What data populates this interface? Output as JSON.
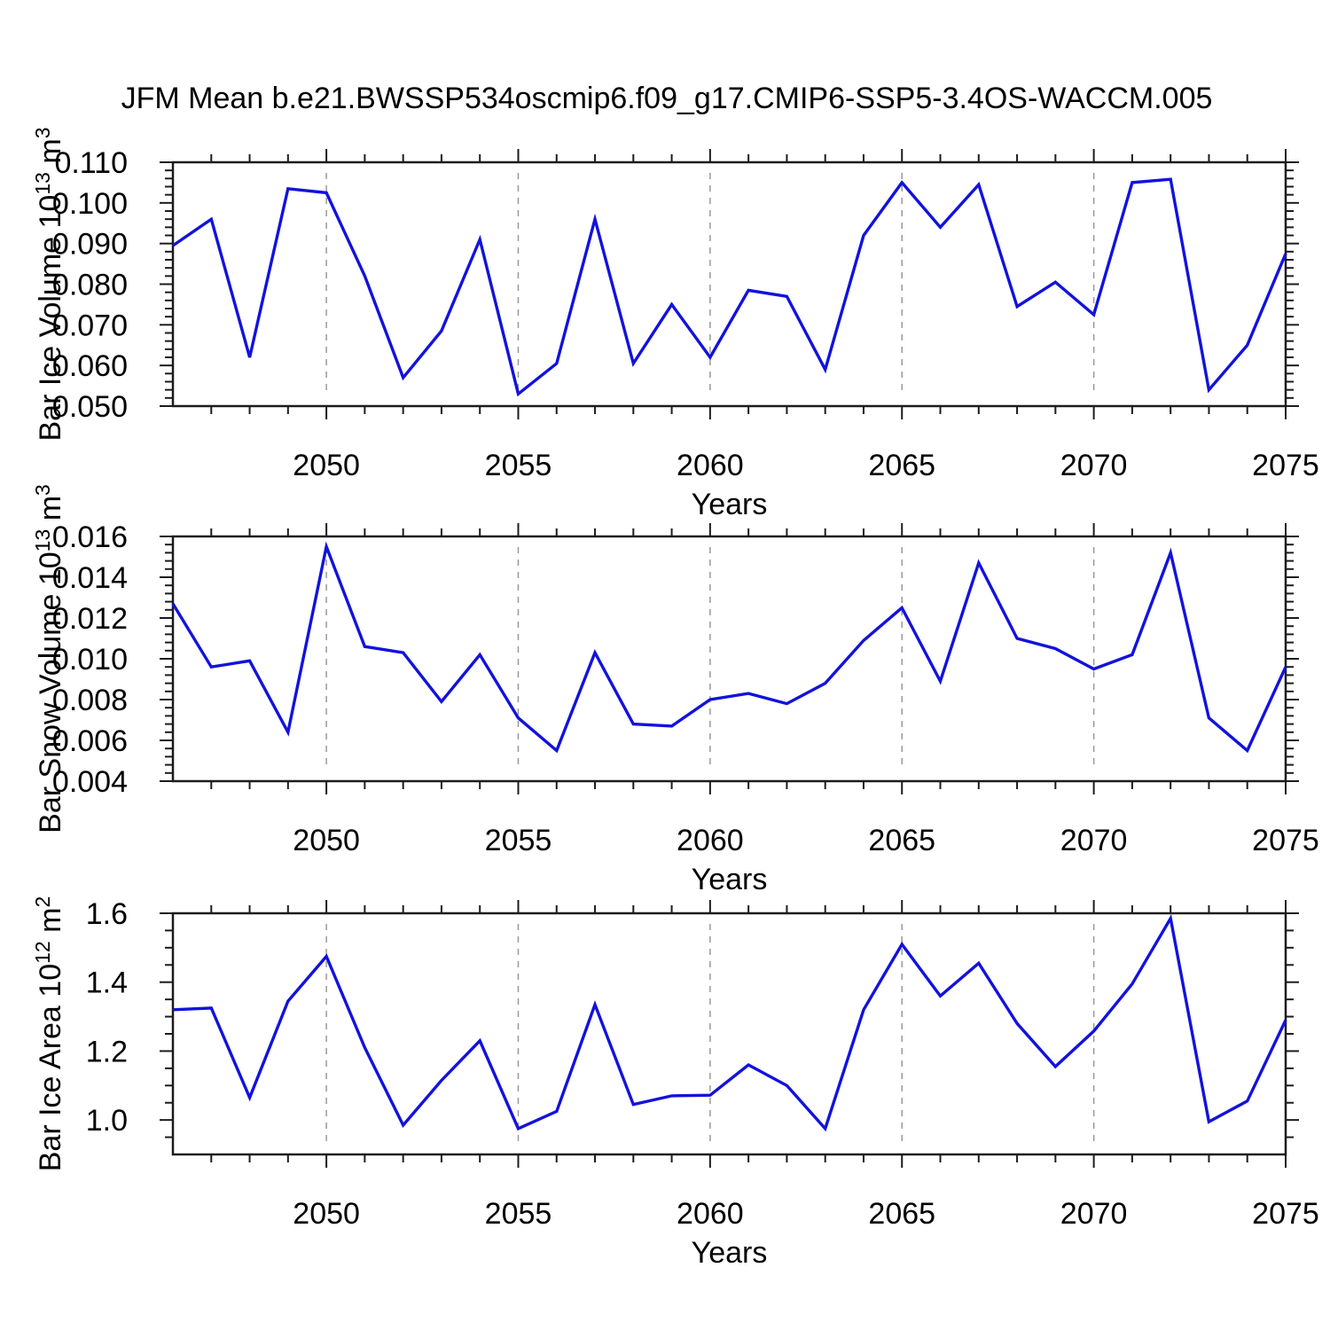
{
  "title": "JFM Mean b.e21.BWSSP534oscmip6.f09_g17.CMIP6-SSP5-3.4OS-WACCM.005",
  "colors": {
    "line": "#1212dd",
    "grid": "#999999",
    "frame": "#1c1c1c",
    "text": "#000000",
    "background": "#ffffff"
  },
  "x_axis": {
    "label": "Years",
    "min": 2046,
    "max": 2075,
    "major_ticks": [
      2050,
      2055,
      2060,
      2065,
      2070,
      2075
    ],
    "tick_labels": [
      "2050",
      "2055",
      "2060",
      "2065",
      "2070",
      "2075"
    ],
    "minor_step": 1,
    "grid_years": [
      2050,
      2055,
      2060,
      2065,
      2070
    ],
    "grid_style": "dashed"
  },
  "chart_data": [
    {
      "type": "line",
      "name": "bar-ice-volume",
      "ylabel": {
        "prefix": "Bar Ice Volume 10",
        "sup1": "13",
        "mid": " m",
        "sup2": "3"
      },
      "ylabel_plain": "Bar Ice Volume 10^13 m^3",
      "ylim": [
        0.05,
        0.11
      ],
      "y_major_ticks": [
        0.11,
        0.1,
        0.09,
        0.08,
        0.07,
        0.06,
        0.05
      ],
      "y_tick_labels": [
        "0.110",
        "0.100",
        "0.090",
        "0.080",
        "0.070",
        "0.060",
        "0.050"
      ],
      "y_minor_step": 0.002,
      "x": [
        2046,
        2047,
        2048,
        2049,
        2050,
        2051,
        2052,
        2053,
        2054,
        2055,
        2056,
        2057,
        2058,
        2059,
        2060,
        2061,
        2062,
        2063,
        2064,
        2065,
        2066,
        2067,
        2068,
        2069,
        2070,
        2071,
        2072,
        2073,
        2074,
        2075
      ],
      "values": [
        0.0895,
        0.096,
        0.062,
        0.1035,
        0.1025,
        0.082,
        0.057,
        0.0685,
        0.091,
        0.053,
        0.0605,
        0.096,
        0.0605,
        0.075,
        0.062,
        0.0785,
        0.077,
        0.059,
        0.092,
        0.105,
        0.094,
        0.1045,
        0.0745,
        0.0805,
        0.0725,
        0.105,
        0.1058,
        0.054,
        0.065,
        0.0875
      ]
    },
    {
      "type": "line",
      "name": "bar-snow-volume",
      "ylabel": {
        "prefix": "Bar Snow Volume 10",
        "sup1": "13",
        "mid": " m",
        "sup2": "3"
      },
      "ylabel_plain": "Bar Snow Volume 10^13 m^3",
      "ylim": [
        0.004,
        0.016
      ],
      "y_major_ticks": [
        0.016,
        0.014,
        0.012,
        0.01,
        0.008,
        0.006,
        0.004
      ],
      "y_tick_labels": [
        "0.016",
        "0.014",
        "0.012",
        "0.010",
        "0.008",
        "0.006",
        "0.004"
      ],
      "y_minor_step": 0.0004,
      "x": [
        2046,
        2047,
        2048,
        2049,
        2050,
        2051,
        2052,
        2053,
        2054,
        2055,
        2056,
        2057,
        2058,
        2059,
        2060,
        2061,
        2062,
        2063,
        2064,
        2065,
        2066,
        2067,
        2068,
        2069,
        2070,
        2071,
        2072,
        2073,
        2074,
        2075
      ],
      "values": [
        0.0127,
        0.0096,
        0.0099,
        0.0064,
        0.0155,
        0.0106,
        0.0103,
        0.0079,
        0.0102,
        0.0071,
        0.0055,
        0.0103,
        0.0068,
        0.0067,
        0.008,
        0.0083,
        0.0078,
        0.0088,
        0.0109,
        0.0125,
        0.0089,
        0.0147,
        0.011,
        0.0105,
        0.0095,
        0.0102,
        0.0152,
        0.0071,
        0.0055,
        0.0096
      ]
    },
    {
      "type": "line",
      "name": "bar-ice-area",
      "ylabel": {
        "prefix": "Bar Ice Area 10",
        "sup1": "12",
        "mid": " m",
        "sup2": "2"
      },
      "ylabel_plain": "Bar Ice Area 10^12 m^2",
      "ylim": [
        0.9,
        1.6
      ],
      "y_major_ticks": [
        1.6,
        1.4,
        1.2,
        1.0
      ],
      "y_tick_labels": [
        "1.6",
        "1.4",
        "1.2",
        "1.0"
      ],
      "y_minor_step": 0.05,
      "x": [
        2046,
        2047,
        2048,
        2049,
        2050,
        2051,
        2052,
        2053,
        2054,
        2055,
        2056,
        2057,
        2058,
        2059,
        2060,
        2061,
        2062,
        2063,
        2064,
        2065,
        2066,
        2067,
        2068,
        2069,
        2070,
        2071,
        2072,
        2073,
        2074,
        2075
      ],
      "values": [
        1.32,
        1.325,
        1.065,
        1.345,
        1.475,
        1.21,
        0.985,
        1.115,
        1.23,
        0.975,
        1.025,
        1.335,
        1.045,
        1.07,
        1.072,
        1.16,
        1.1,
        0.975,
        1.32,
        1.51,
        1.36,
        1.455,
        1.28,
        1.155,
        1.258,
        1.395,
        1.585,
        0.995,
        1.055,
        1.29
      ]
    }
  ]
}
